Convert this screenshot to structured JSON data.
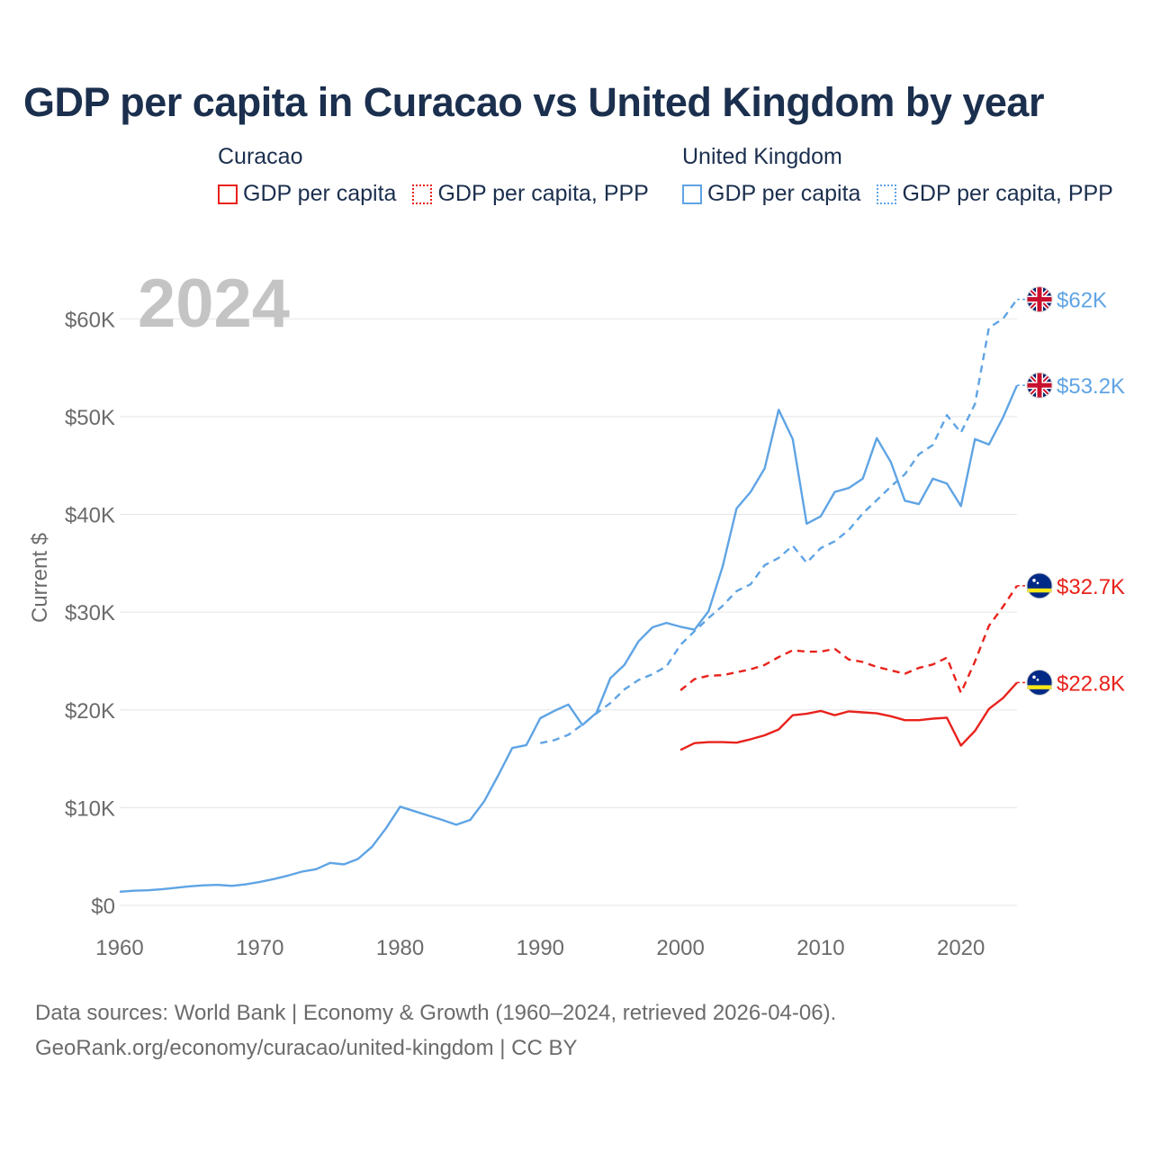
{
  "chart_data": {
    "type": "line",
    "title": "GDP per capita in Curacao vs United Kingdom by year",
    "ylabel": "Current $",
    "xlabel": "",
    "year_stamp": "2024",
    "xlim": [
      1960,
      2024
    ],
    "ylim": [
      0,
      65000
    ],
    "x_ticks": [
      1960,
      1970,
      1980,
      1990,
      2000,
      2010,
      2020
    ],
    "y_ticks": [
      {
        "value": 0,
        "label": "$0"
      },
      {
        "value": 10000,
        "label": "$10K"
      },
      {
        "value": 20000,
        "label": "$20K"
      },
      {
        "value": 30000,
        "label": "$30K"
      },
      {
        "value": 40000,
        "label": "$40K"
      },
      {
        "value": 50000,
        "label": "$50K"
      },
      {
        "value": 60000,
        "label": "$60K"
      }
    ],
    "legend": [
      {
        "country": "Curacao",
        "items": [
          "GDP per capita",
          "GDP per capita, PPP"
        ],
        "color": "#e8221c"
      },
      {
        "country": "United Kingdom",
        "items": [
          "GDP per capita",
          "GDP per capita, PPP"
        ],
        "color": "#5fa4e4"
      }
    ],
    "series": [
      {
        "name": "United Kingdom GDP per capita",
        "country": "United Kingdom",
        "flag": "uk",
        "color": "#5fa4e4",
        "dash": false,
        "end_label": "$53.2K",
        "x": [
          1960,
          1961,
          1962,
          1963,
          1964,
          1965,
          1966,
          1967,
          1968,
          1969,
          1970,
          1971,
          1972,
          1973,
          1974,
          1975,
          1976,
          1977,
          1978,
          1979,
          1980,
          1981,
          1982,
          1983,
          1984,
          1985,
          1986,
          1987,
          1988,
          1989,
          1990,
          1991,
          1992,
          1993,
          1994,
          1995,
          1996,
          1997,
          1998,
          1999,
          2000,
          2001,
          2002,
          2003,
          2004,
          2005,
          2006,
          2007,
          2008,
          2009,
          2010,
          2011,
          2012,
          2013,
          2014,
          2015,
          2016,
          2017,
          2018,
          2019,
          2020,
          2021,
          2022,
          2023,
          2024
        ],
        "values": [
          1400,
          1500,
          1550,
          1650,
          1800,
          1950,
          2050,
          2100,
          2000,
          2150,
          2400,
          2700,
          3050,
          3450,
          3700,
          4350,
          4200,
          4750,
          6000,
          7900,
          10100,
          9650,
          9200,
          8750,
          8250,
          8750,
          10650,
          13300,
          16100,
          16400,
          19150,
          19900,
          20550,
          18450,
          19700,
          23250,
          24600,
          27000,
          28450,
          28900,
          28500,
          28200,
          30100,
          34650,
          40600,
          42300,
          44700,
          50700,
          47700,
          39050,
          39800,
          42300,
          42700,
          43650,
          47800,
          45350,
          41400,
          41050,
          43650,
          43150,
          40850,
          47700,
          47150,
          49900,
          53200
        ]
      },
      {
        "name": "United Kingdom GDP per capita, PPP",
        "country": "United Kingdom",
        "flag": "uk",
        "color": "#5fa4e4",
        "dash": true,
        "end_label": "$62K",
        "x": [
          1990,
          1991,
          1992,
          1993,
          1994,
          1995,
          1996,
          1997,
          1998,
          1999,
          2000,
          2001,
          2002,
          2003,
          2004,
          2005,
          2006,
          2007,
          2008,
          2009,
          2010,
          2011,
          2012,
          2013,
          2014,
          2015,
          2016,
          2017,
          2018,
          2019,
          2020,
          2021,
          2022,
          2023,
          2024
        ],
        "values": [
          16600,
          16900,
          17450,
          18500,
          19650,
          20700,
          22100,
          23050,
          23650,
          24450,
          26650,
          28050,
          29400,
          30650,
          32150,
          32850,
          34800,
          35550,
          36800,
          35050,
          36550,
          37250,
          38400,
          40100,
          41450,
          42850,
          44100,
          46150,
          47100,
          50150,
          48350,
          51300,
          59100,
          60000,
          62000
        ]
      },
      {
        "name": "Curacao GDP per capita",
        "country": "Curacao",
        "flag": "cw",
        "color": "#e8221c",
        "dash": false,
        "end_label": "$22.8K",
        "x": [
          2000,
          2001,
          2002,
          2003,
          2004,
          2005,
          2006,
          2007,
          2008,
          2009,
          2010,
          2011,
          2012,
          2013,
          2014,
          2015,
          2016,
          2017,
          2018,
          2019,
          2020,
          2021,
          2022,
          2023,
          2024
        ],
        "values": [
          15900,
          16600,
          16700,
          16700,
          16650,
          17000,
          17400,
          18000,
          19450,
          19600,
          19900,
          19450,
          19850,
          19750,
          19650,
          19350,
          18950,
          18950,
          19100,
          19200,
          16350,
          17850,
          20100,
          21200,
          22800
        ]
      },
      {
        "name": "Curacao GDP per capita, PPP",
        "country": "Curacao",
        "flag": "cw",
        "color": "#e8221c",
        "dash": true,
        "end_label": "$32.7K",
        "x": [
          2000,
          2001,
          2002,
          2003,
          2004,
          2005,
          2006,
          2007,
          2008,
          2009,
          2010,
          2011,
          2012,
          2013,
          2014,
          2015,
          2016,
          2017,
          2018,
          2019,
          2020,
          2021,
          2022,
          2023,
          2024
        ],
        "values": [
          22000,
          23150,
          23500,
          23550,
          23850,
          24150,
          24600,
          25400,
          26100,
          25950,
          25950,
          26250,
          25150,
          24900,
          24400,
          24050,
          23700,
          24300,
          24650,
          25350,
          21750,
          24950,
          28600,
          30550,
          32700
        ]
      }
    ]
  },
  "source": {
    "line1": "Data sources: World Bank | Economy & Growth (1960–2024, retrieved 2026-04-06).",
    "line2": "GeoRank.org/economy/curacao/united-kingdom | CC BY"
  }
}
